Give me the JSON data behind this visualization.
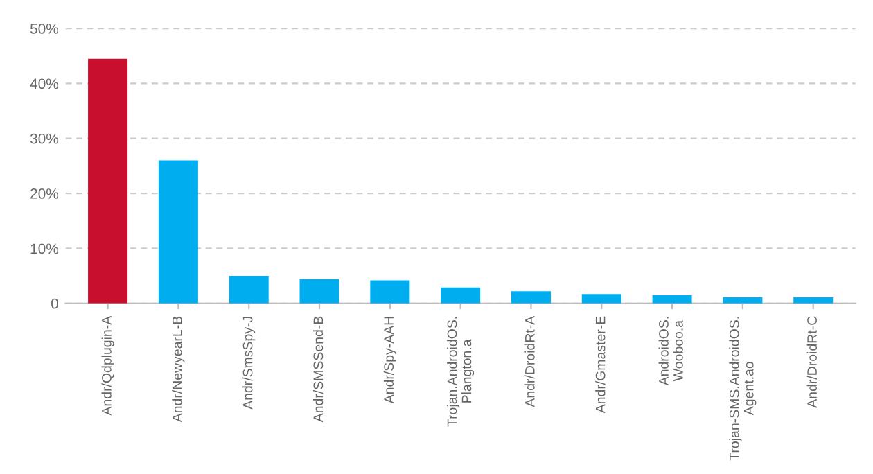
{
  "chart_data": {
    "type": "bar",
    "categories": [
      "Andr/Qdplugin-A",
      "Andr/NewyearL-B",
      "Andr/SmsSpy-J",
      "Andr/SMSSend-B",
      "Andr/Spy-AAH",
      "Trojan.AndroidOS.\nPlangton.a",
      "Andr/DroidRt-A",
      "Andr/Gmaster-E",
      "AndroidOS.\nWooboo.a",
      "Trojan-SMS.AndroidOS.\nAgent.ao",
      "Andr/DroidRt-C"
    ],
    "values": [
      44.5,
      26,
      5,
      4.4,
      4.2,
      2.9,
      2.2,
      1.7,
      1.5,
      1.1,
      1.1
    ],
    "colors": [
      "#c8102e",
      "#00aeef",
      "#00aeef",
      "#00aeef",
      "#00aeef",
      "#00aeef",
      "#00aeef",
      "#00aeef",
      "#00aeef",
      "#00aeef",
      "#00aeef"
    ],
    "ylim": [
      0,
      50
    ],
    "yticks": [
      0,
      {
        "value": 10,
        "label": "10%"
      },
      {
        "value": 20,
        "label": "20%"
      },
      {
        "value": 30,
        "label": "30%"
      },
      {
        "value": 40,
        "label": "40%"
      },
      {
        "value": 50,
        "label": "50%"
      }
    ],
    "grid": "y"
  }
}
